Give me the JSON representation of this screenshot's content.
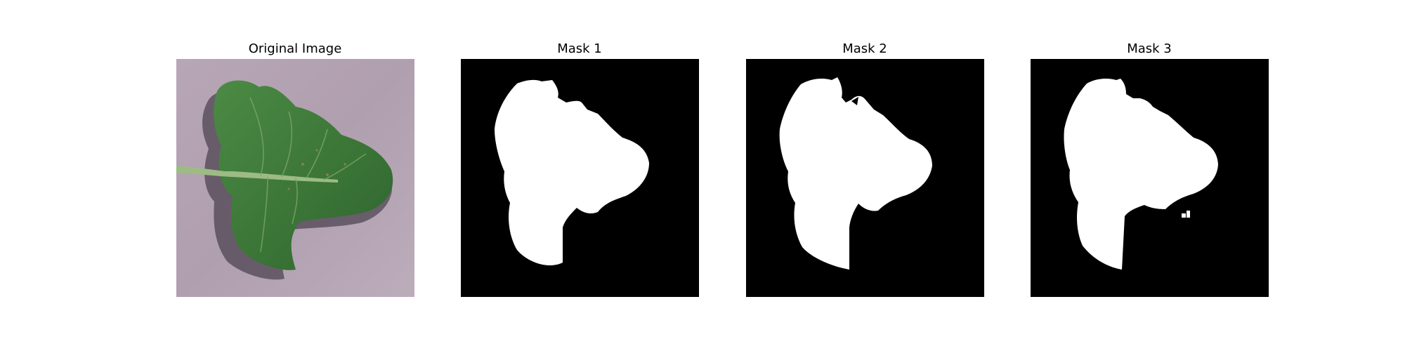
{
  "panels": [
    {
      "title": "Original Image"
    },
    {
      "title": "Mask 1"
    },
    {
      "title": "Mask 2"
    },
    {
      "title": "Mask 3"
    }
  ],
  "colors": {
    "background": "#b3a3b2",
    "leaf": "#3e7a3a",
    "mask_bg": "#000000",
    "mask_fg": "#ffffff"
  }
}
